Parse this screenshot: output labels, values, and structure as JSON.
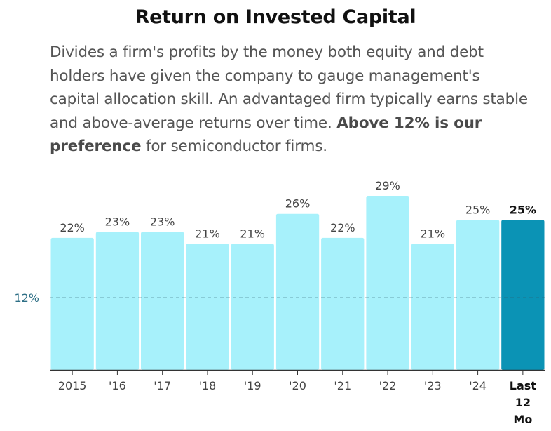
{
  "chart_data": {
    "type": "bar",
    "title": "Return on Invested Capital",
    "description": {
      "text_before": "Divides a firm's profits by the money both equity and debt holders have given the company to gauge management's capital allocation skill. An advantaged firm typically earns stable and above-average returns over time. ",
      "bold": "Above 12% is our preference",
      "text_after": " for semiconductor firms."
    },
    "categories": [
      "2015",
      "'16",
      "'17",
      "'18",
      "'19",
      "'20",
      "'21",
      "'22",
      "'23",
      "'24",
      "Last 12 Mo"
    ],
    "values": [
      22,
      23,
      23,
      21,
      21,
      26,
      22,
      29,
      21,
      25,
      25
    ],
    "data_labels": [
      "22%",
      "23%",
      "23%",
      "21%",
      "21%",
      "26%",
      "22%",
      "29%",
      "21%",
      "25%",
      "25%"
    ],
    "highlight_index": 10,
    "reference_line": {
      "value": 12,
      "label": "12%"
    },
    "ylim": [
      0,
      30
    ],
    "grid": false,
    "colors": {
      "bar": "#a7f1fb",
      "highlight_bar": "#0b93b5",
      "reference_line": "#2f5a66",
      "reference_label": "#2e6f86",
      "axis": "#333333"
    }
  }
}
